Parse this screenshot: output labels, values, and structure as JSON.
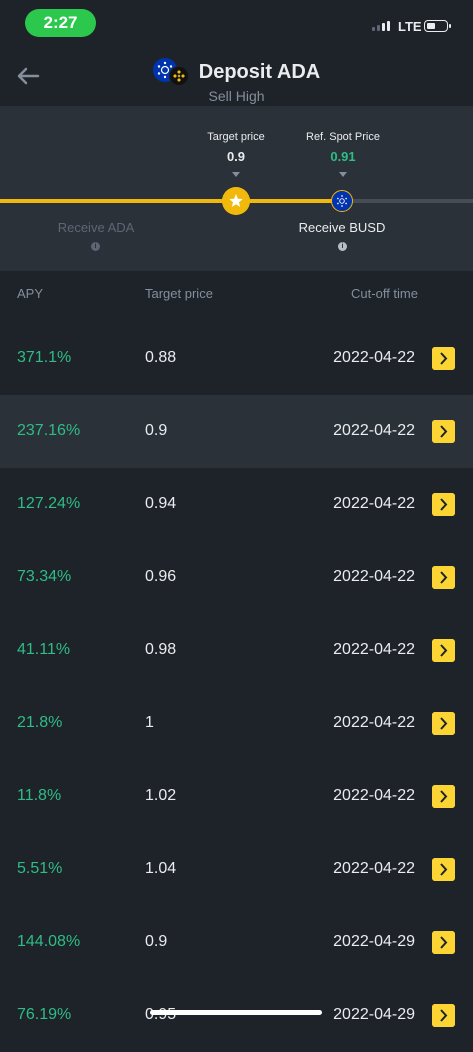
{
  "status_bar": {
    "time": "2:27",
    "network": "LTE"
  },
  "header": {
    "title": "Deposit ADA",
    "subtitle": "Sell High"
  },
  "price_panel": {
    "target_price_label": "Target price",
    "target_price_value": "0.9",
    "ref_spot_label": "Ref. Spot Price",
    "ref_spot_value": "0.91",
    "receive_left": "Receive ADA",
    "receive_right": "Receive BUSD"
  },
  "table": {
    "headers": {
      "apy": "APY",
      "target_price": "Target price",
      "cutoff": "Cut-off time"
    },
    "rows": [
      {
        "apy": "371.1%",
        "target_price": "0.88",
        "cutoff": "2022-04-22"
      },
      {
        "apy": "237.16%",
        "target_price": "0.9",
        "cutoff": "2022-04-22"
      },
      {
        "apy": "127.24%",
        "target_price": "0.94",
        "cutoff": "2022-04-22"
      },
      {
        "apy": "73.34%",
        "target_price": "0.96",
        "cutoff": "2022-04-22"
      },
      {
        "apy": "41.11%",
        "target_price": "0.98",
        "cutoff": "2022-04-22"
      },
      {
        "apy": "21.8%",
        "target_price": "1",
        "cutoff": "2022-04-22"
      },
      {
        "apy": "11.8%",
        "target_price": "1.02",
        "cutoff": "2022-04-22"
      },
      {
        "apy": "5.51%",
        "target_price": "1.04",
        "cutoff": "2022-04-22"
      },
      {
        "apy": "144.08%",
        "target_price": "0.9",
        "cutoff": "2022-04-29"
      },
      {
        "apy": "76.19%",
        "target_price": "0.95",
        "cutoff": "2022-04-29"
      }
    ]
  },
  "colors": {
    "accent": "#f0b90b",
    "positive": "#2ebd85",
    "background": "#1e2329",
    "panel": "#2b3139"
  },
  "icons": [
    "back-arrow-icon",
    "ada-coin-icon",
    "bnb-coin-icon",
    "star-icon",
    "info-icon",
    "chevron-right-icon",
    "battery-icon",
    "signal-icon"
  ]
}
